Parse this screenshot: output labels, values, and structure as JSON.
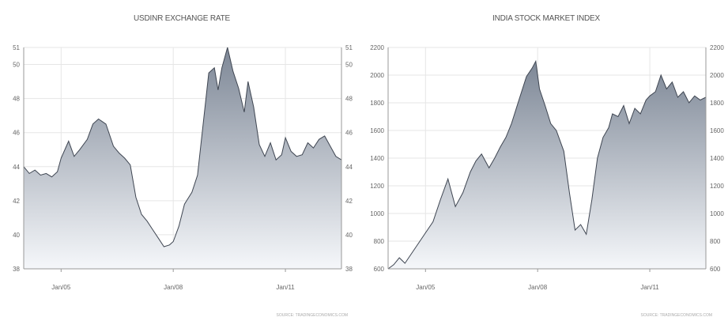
{
  "chart_data": [
    {
      "type": "area",
      "title": "USDINR EXCHANGE RATE",
      "xlabel": "",
      "ylabel": "",
      "source": "SOURCE: TRADINGECONOMICS.COM",
      "ylim": [
        38,
        51
      ],
      "yticks": [
        38,
        40,
        42,
        44,
        46,
        48,
        50,
        51
      ],
      "y_ticks_both_sides": true,
      "xlim": [
        2004.0,
        2012.5
      ],
      "xticks": [
        {
          "x": 2005.0,
          "label": "Jan/05"
        },
        {
          "x": 2008.0,
          "label": "Jan/08"
        },
        {
          "x": 2011.0,
          "label": "Jan/11"
        }
      ],
      "grid": true,
      "fill_gradient": [
        "#7d8796",
        "#f5f7fa"
      ],
      "line_color": "#3f4652",
      "series": [
        {
          "x": [
            2004.0,
            2004.15,
            2004.3,
            2004.45,
            2004.6,
            2004.75,
            2004.9,
            2005.0,
            2005.2,
            2005.35,
            2005.5,
            2005.7,
            2005.85,
            2006.0,
            2006.2,
            2006.4,
            2006.55,
            2006.7,
            2006.85,
            2007.0,
            2007.15,
            2007.3,
            2007.45,
            2007.6,
            2007.75,
            2007.9,
            2008.0,
            2008.15,
            2008.3,
            2008.5,
            2008.65,
            2008.8,
            2008.95,
            2009.1,
            2009.2,
            2009.3,
            2009.45,
            2009.6,
            2009.75,
            2009.9,
            2010.0,
            2010.15,
            2010.3,
            2010.45,
            2010.6,
            2010.75,
            2010.9,
            2011.0,
            2011.15,
            2011.3,
            2011.45,
            2011.6,
            2011.75,
            2011.9,
            2012.05,
            2012.2,
            2012.35,
            2012.5
          ],
          "y": [
            44.0,
            43.6,
            43.8,
            43.5,
            43.6,
            43.4,
            43.7,
            44.5,
            45.5,
            44.6,
            45.0,
            45.6,
            46.5,
            46.8,
            46.5,
            45.2,
            44.8,
            44.5,
            44.1,
            42.2,
            41.2,
            40.8,
            40.3,
            39.8,
            39.3,
            39.4,
            39.6,
            40.5,
            41.8,
            42.5,
            43.5,
            46.5,
            49.5,
            49.8,
            48.5,
            49.8,
            51.0,
            49.6,
            48.6,
            47.2,
            49.0,
            47.5,
            45.3,
            44.6,
            45.4,
            44.4,
            44.7,
            45.7,
            44.9,
            44.6,
            44.7,
            45.4,
            45.1,
            45.6,
            45.8,
            45.2,
            44.6,
            44.4
          ]
        }
      ]
    },
    {
      "type": "area",
      "title": "INDIA STOCK MARKET INDEX",
      "xlabel": "",
      "ylabel": "",
      "source": "SOURCE: TRADINGECONOMICS.COM",
      "ylim": [
        600,
        2200
      ],
      "yticks": [
        600,
        800,
        1000,
        1200,
        1400,
        1600,
        1800,
        2000,
        2200
      ],
      "y_ticks_both_sides": true,
      "xlim": [
        2004.0,
        2012.5
      ],
      "xticks": [
        {
          "x": 2005.0,
          "label": "Jan/05"
        },
        {
          "x": 2008.0,
          "label": "Jan/08"
        },
        {
          "x": 2011.0,
          "label": "Jan/11"
        }
      ],
      "grid": true,
      "fill_gradient": [
        "#7d8796",
        "#f5f7fa"
      ],
      "line_color": "#3f4652",
      "series": [
        {
          "x": [
            2004.0,
            2004.15,
            2004.3,
            2004.45,
            2004.6,
            2004.75,
            2004.9,
            2005.0,
            2005.2,
            2005.4,
            2005.6,
            2005.8,
            2006.0,
            2006.2,
            2006.35,
            2006.5,
            2006.7,
            2006.85,
            2007.0,
            2007.15,
            2007.3,
            2007.5,
            2007.7,
            2007.85,
            2007.95,
            2008.05,
            2008.2,
            2008.35,
            2008.5,
            2008.7,
            2008.85,
            2009.0,
            2009.15,
            2009.3,
            2009.45,
            2009.6,
            2009.75,
            2009.9,
            2010.0,
            2010.15,
            2010.3,
            2010.45,
            2010.6,
            2010.75,
            2010.9,
            2011.0,
            2011.15,
            2011.3,
            2011.45,
            2011.6,
            2011.75,
            2011.9,
            2012.05,
            2012.2,
            2012.35,
            2012.5
          ],
          "y": [
            600,
            630,
            680,
            640,
            700,
            760,
            820,
            860,
            940,
            1100,
            1250,
            1050,
            1150,
            1300,
            1380,
            1430,
            1330,
            1400,
            1480,
            1550,
            1650,
            1820,
            1990,
            2050,
            2100,
            1900,
            1780,
            1650,
            1600,
            1450,
            1150,
            880,
            920,
            850,
            1100,
            1400,
            1550,
            1620,
            1720,
            1700,
            1780,
            1650,
            1760,
            1720,
            1820,
            1850,
            1880,
            2000,
            1900,
            1950,
            1840,
            1880,
            1800,
            1850,
            1820,
            1840
          ]
        }
      ]
    }
  ]
}
